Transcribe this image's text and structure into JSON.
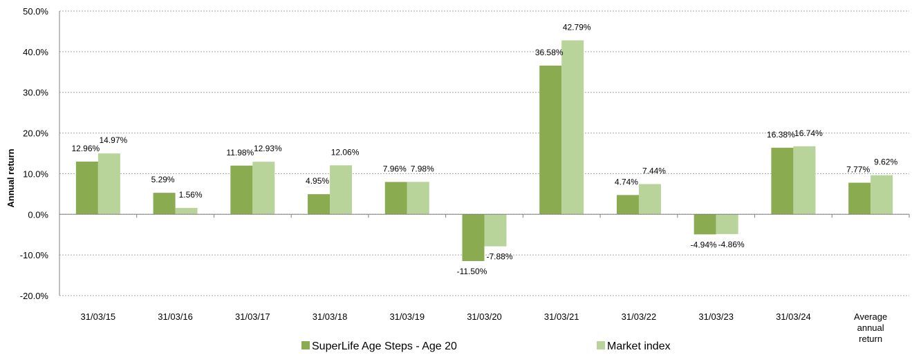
{
  "chart_data": {
    "type": "bar",
    "title": "",
    "xlabel": "",
    "ylabel": "Annual return",
    "ylim": [
      -20,
      50
    ],
    "y_step": 10,
    "y_tick_suffix": "%",
    "grid": "horizontal dashed",
    "legend_position": "bottom",
    "categories": [
      "31/03/15",
      "31/03/16",
      "31/03/17",
      "31/03/18",
      "31/03/19",
      "31/03/20",
      "31/03/21",
      "31/03/22",
      "31/03/23",
      "31/03/24",
      [
        "Average",
        "annual",
        "return"
      ]
    ],
    "series": [
      {
        "name": "SuperLife Age Steps - Age 20",
        "color": "#8aab50",
        "values": [
          12.96,
          5.29,
          11.98,
          4.95,
          7.96,
          -11.5,
          36.58,
          4.74,
          -4.94,
          16.38,
          7.77
        ],
        "labels": [
          "12.96%",
          "5.29%",
          "11.98%",
          "4.95%",
          "7.96%",
          "-11.50%",
          "36.58%",
          "4.74%",
          "-4.94%",
          "16.38%",
          "7.77%"
        ]
      },
      {
        "name": "Market index",
        "color": "#b8d49a",
        "values": [
          14.97,
          1.56,
          12.93,
          12.06,
          7.98,
          -7.88,
          42.79,
          7.44,
          -4.86,
          16.74,
          9.62
        ],
        "labels": [
          "14.97%",
          "1.56%",
          "12.93%",
          "12.06%",
          "7.98%",
          "-7.88%",
          "42.79%",
          "7.44%",
          "-4.86%",
          "16.74%",
          "9.62%"
        ]
      }
    ]
  }
}
